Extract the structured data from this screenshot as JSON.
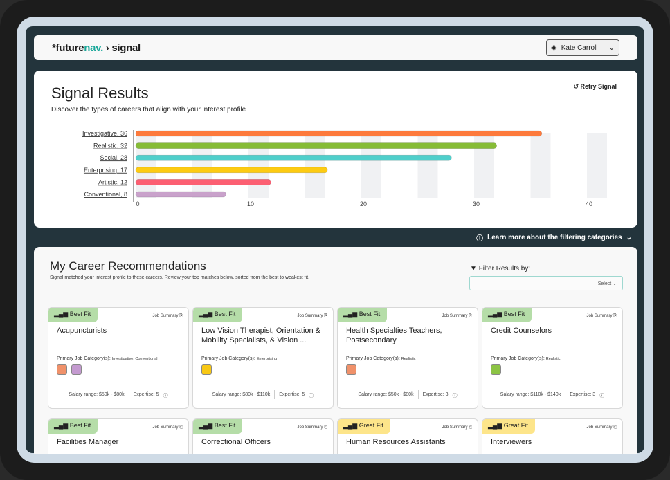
{
  "header": {
    "logo_prefix": "*future",
    "logo_nav": "nav.",
    "logo_suffix": " › signal",
    "user": "Kate Carroll"
  },
  "results": {
    "title": "Signal Results",
    "subtitle": "Discover the types of careers that align with your interest profile",
    "retry": "Retry Signal"
  },
  "chart_data": {
    "type": "bar",
    "orientation": "horizontal",
    "categories": [
      "Investigative, 36",
      "Realistic, 32",
      "Social, 28",
      "Enterprising, 17",
      "Artistic, 12",
      "Conventional, 8"
    ],
    "values": [
      36,
      32,
      28,
      17,
      12,
      8
    ],
    "colors": [
      "#fd7a3c",
      "#86bc36",
      "#4fcfcb",
      "#fdcb12",
      "#fc5f72",
      "#c9a2cb"
    ],
    "xlim": [
      0,
      40
    ],
    "xticks": [
      0,
      10,
      20,
      30,
      40
    ]
  },
  "learn_more": "Learn more about the filtering categories",
  "recs": {
    "title": "My Career Recommendations",
    "subtitle": "Signal matched your interest profile to these careers. Review your top matches below, sorted from the best to weakest fit.",
    "filter_label": "Filter Results by:",
    "filter_placeholder": "Select ⌄",
    "cards": [
      {
        "fit": "Best Fit",
        "title": "Acupuncturists",
        "cat_label": "Primary Job Category(s):",
        "cats": "Investigative, Conventional",
        "icons": [
          "#f0916a",
          "#c49ad0"
        ],
        "salary": "Salary range: $50k - $80k",
        "expertise": "Expertise: 5"
      },
      {
        "fit": "Best Fit",
        "title": "Low Vision Therapist, Orientation & Mobility Specialists, & Vision ...",
        "cat_label": "Primary Job Category(s):",
        "cats": "Enterprising",
        "icons": [
          "#f8c814"
        ],
        "salary": "Salary range: $80k - $110k",
        "expertise": "Expertise: 5"
      },
      {
        "fit": "Best Fit",
        "title": "Health Specialties Teachers, Postsecondary",
        "cat_label": "Primary Job Category(s):",
        "cats": "Realistic",
        "icons": [
          "#f0916a"
        ],
        "salary": "Salary range: $50k - $80k",
        "expertise": "Expertise: 3"
      },
      {
        "fit": "Best Fit",
        "title": "Credit Counselors",
        "cat_label": "Primary Job Category(s):",
        "cats": "Realistic",
        "icons": [
          "#8cc444"
        ],
        "salary": "Salary range: $110k - $140k",
        "expertise": "Expertise: 3"
      },
      {
        "fit": "Best Fit",
        "title": "Facilities Manager"
      },
      {
        "fit": "Best Fit",
        "title": "Correctional Officers"
      },
      {
        "fit": "Great Fit",
        "title": "Human Resources Assistants"
      },
      {
        "fit": "Great Fit",
        "title": "Interviewers"
      }
    ],
    "job_summary": "Job Summary"
  }
}
